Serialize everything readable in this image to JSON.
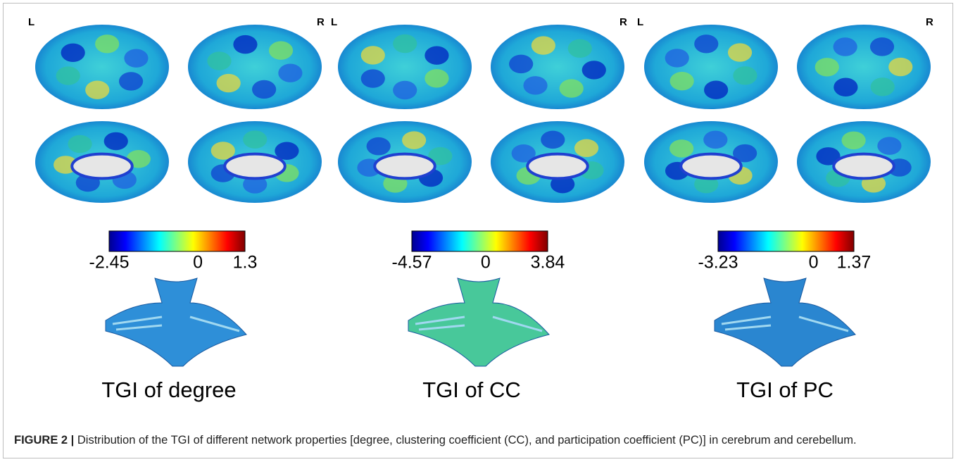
{
  "figure": {
    "panels": [
      {
        "left_label": "L",
        "right_label": "R",
        "colorbar": {
          "min": -2.45,
          "zero": 0,
          "max": 1.3
        },
        "title": "TGI of degree"
      },
      {
        "left_label": "L",
        "right_label": "R",
        "colorbar": {
          "min": -4.57,
          "zero": 0,
          "max": 3.84
        },
        "title": "TGI of CC"
      },
      {
        "left_label": "L",
        "right_label": "R",
        "colorbar": {
          "min": -3.23,
          "zero": 0,
          "max": 1.37
        },
        "title": "TGI of PC"
      }
    ],
    "caption": {
      "label": "FIGURE 2 |",
      "text": " Distribution of the TGI of different network properties [degree, clustering coefficient (CC), and participation coefficient (PC)] in cerebrum and cerebellum."
    }
  }
}
